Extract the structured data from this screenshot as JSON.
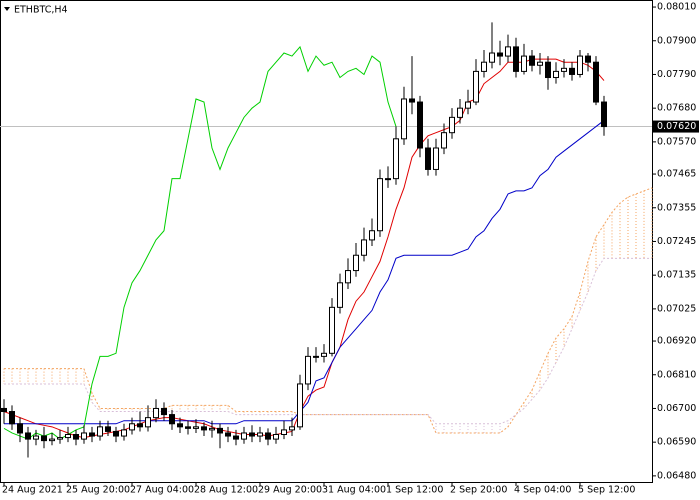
{
  "chart_data": {
    "type": "candlestick",
    "title": "ETHBTC,H4",
    "categories": [
      "24 Aug 2021",
      null,
      null,
      null,
      null,
      null,
      null,
      null,
      "25 Aug 20:00",
      null,
      null,
      null,
      null,
      null,
      null,
      null,
      "27 Aug 04:00",
      null,
      null,
      null,
      null,
      null,
      null,
      null,
      "28 Aug 12:00",
      null,
      null,
      null,
      null,
      null,
      null,
      null,
      "29 Aug 20:00",
      null,
      null,
      null,
      null,
      null,
      null,
      null,
      "31 Aug 04:00",
      null,
      null,
      null,
      null,
      null,
      null,
      null,
      "1 Sep 12:00",
      null,
      null,
      null,
      null,
      null,
      null,
      null,
      "2 Sep 20:00",
      null,
      null,
      null,
      null,
      null,
      null,
      null,
      "4 Sep 04:00",
      null,
      null,
      null,
      null,
      null,
      null,
      null,
      "5 Sep 12:00",
      null,
      null,
      null,
      null,
      null,
      null,
      null,
      null,
      null
    ],
    "open": [
      0.067,
      0.0669,
      0.0665,
      0.0662,
      0.066,
      0.0661,
      0.06595,
      0.066,
      0.06605,
      0.06615,
      0.066,
      0.0662,
      0.0661,
      0.0664,
      0.06625,
      0.0661,
      0.0663,
      0.0665,
      0.0664,
      0.0667,
      0.067,
      0.0668,
      0.0665,
      0.0664,
      0.06635,
      0.0664,
      0.0663,
      0.06635,
      0.0662,
      0.0661,
      0.066,
      0.0662,
      0.0661,
      0.0662,
      0.066,
      0.06615,
      0.0663,
      0.0664,
      0.0678,
      0.0687,
      0.0687,
      0.0688,
      0.0703,
      0.0711,
      0.0715,
      0.072,
      0.0725,
      0.0728,
      0.0745,
      0.0745,
      0.0758,
      0.0771,
      0.077,
      0.0755,
      0.0748,
      0.0755,
      0.076,
      0.0765,
      0.0768,
      0.077,
      0.078,
      0.0783,
      0.0786,
      0.0785,
      0.0788,
      0.078,
      0.0785,
      0.0782,
      0.0783,
      0.0778,
      0.078,
      0.0781,
      0.0779,
      0.0785,
      0.0783,
      0.077,
      null,
      null,
      null,
      null,
      null,
      null
    ],
    "high": [
      0.0673,
      0.0671,
      0.0667,
      0.0664,
      0.0663,
      0.0664,
      0.0662,
      0.0663,
      0.0664,
      0.0663,
      0.06645,
      0.0664,
      0.0666,
      0.0666,
      0.0664,
      0.0665,
      0.0667,
      0.0669,
      0.0671,
      0.0673,
      0.0672,
      0.06695,
      0.0667,
      0.0666,
      0.06665,
      0.06655,
      0.0666,
      0.0665,
      0.0664,
      0.0663,
      0.0664,
      0.06645,
      0.0664,
      0.06635,
      0.0664,
      0.0666,
      0.0667,
      0.0681,
      0.069,
      0.069,
      0.0691,
      0.0706,
      0.0714,
      0.0719,
      0.0724,
      0.0729,
      0.0732,
      0.0748,
      0.0749,
      0.0762,
      0.0775,
      0.0785,
      0.0772,
      0.0758,
      0.0758,
      0.0763,
      0.0768,
      0.0771,
      0.0774,
      0.0784,
      0.0787,
      0.0796,
      0.079,
      0.0792,
      0.0791,
      0.0789,
      0.0787,
      0.0786,
      0.0785,
      0.0783,
      0.0784,
      0.0783,
      0.0787,
      0.0786,
      0.0785,
      0.0772,
      null,
      null,
      null,
      null,
      null,
      null
    ],
    "low": [
      0.0665,
      0.0663,
      0.0659,
      0.0654,
      0.0658,
      0.0657,
      0.0658,
      0.06585,
      0.0659,
      0.0658,
      0.06585,
      0.0659,
      0.06595,
      0.0661,
      0.0659,
      0.06595,
      0.06615,
      0.06625,
      0.06625,
      0.06655,
      0.0666,
      0.0663,
      0.0662,
      0.06615,
      0.0662,
      0.0661,
      0.06605,
      0.0657,
      0.0659,
      0.0658,
      0.06585,
      0.0659,
      0.0659,
      0.0658,
      0.06585,
      0.066,
      0.0661,
      0.0663,
      0.0676,
      0.0685,
      0.0685,
      0.0687,
      0.0701,
      0.0709,
      0.0713,
      0.0718,
      0.0723,
      0.0726,
      0.0742,
      0.0743,
      0.0756,
      0.0766,
      0.0752,
      0.0746,
      0.0746,
      0.0753,
      0.0758,
      0.0763,
      0.0766,
      0.0769,
      0.0778,
      0.0781,
      0.0782,
      0.0783,
      0.0778,
      0.0779,
      0.078,
      0.0779,
      0.0774,
      0.0776,
      0.0778,
      0.0777,
      0.0778,
      0.078,
      0.0769,
      0.0759,
      null,
      null,
      null,
      null,
      null,
      null
    ],
    "close": [
      0.0669,
      0.0665,
      0.0662,
      0.066,
      0.0661,
      0.06595,
      0.066,
      0.06605,
      0.06615,
      0.066,
      0.0662,
      0.0661,
      0.0664,
      0.06625,
      0.0661,
      0.0663,
      0.0665,
      0.0664,
      0.0667,
      0.067,
      0.0668,
      0.0665,
      0.0664,
      0.06635,
      0.0664,
      0.0663,
      0.06635,
      0.0662,
      0.0661,
      0.066,
      0.0662,
      0.0661,
      0.0662,
      0.066,
      0.06615,
      0.0663,
      0.0664,
      0.0678,
      0.0687,
      0.0687,
      0.0688,
      0.0703,
      0.0711,
      0.0715,
      0.072,
      0.0725,
      0.0728,
      0.0745,
      0.0745,
      0.0758,
      0.0771,
      0.077,
      0.0755,
      0.0748,
      0.0755,
      0.076,
      0.0765,
      0.0768,
      0.077,
      0.078,
      0.0783,
      0.0786,
      0.0785,
      0.0788,
      0.078,
      0.0785,
      0.0782,
      0.0783,
      0.0778,
      0.078,
      0.0781,
      0.0779,
      0.0785,
      0.0783,
      0.077,
      0.0762,
      null,
      null,
      null,
      null,
      null,
      null
    ],
    "overlays": [
      {
        "color": "#e00000",
        "values": [
          0.0669,
          0.0668,
          0.0667,
          0.0666,
          0.0665,
          0.06645,
          0.0664,
          0.0663,
          0.0662,
          0.0661,
          0.06605,
          0.0661,
          0.06615,
          0.0662,
          0.06625,
          0.0663,
          0.0664,
          0.0665,
          0.0666,
          0.06665,
          0.0667,
          0.0667,
          0.06665,
          0.0666,
          0.06655,
          0.0665,
          0.0664,
          0.0663,
          0.06625,
          0.0662,
          0.06615,
          0.06615,
          0.06615,
          0.0661,
          0.06615,
          0.0662,
          0.06625,
          0.0669,
          0.0674,
          0.0676,
          0.0677,
          0.0685,
          0.069,
          0.0699,
          0.0705,
          0.0708,
          0.0713,
          0.0718,
          0.0726,
          0.0735,
          0.0742,
          0.0752,
          0.0756,
          0.0759,
          0.076,
          0.0761,
          0.0762,
          0.0764,
          0.077,
          0.0771,
          0.0776,
          0.0778,
          0.078,
          0.0783,
          0.0783,
          0.0783,
          0.0784,
          0.0784,
          0.0784,
          0.0784,
          0.0783,
          0.0783,
          0.0783,
          0.0782,
          0.078,
          0.0777,
          null,
          null,
          null,
          null,
          null,
          null
        ]
      },
      {
        "color": "#0000c8",
        "values": [
          0.0665,
          0.0665,
          0.0665,
          0.0665,
          0.0665,
          0.0665,
          0.0665,
          0.0665,
          0.0665,
          0.0665,
          0.0665,
          0.0665,
          0.0665,
          0.0665,
          0.0665,
          0.0666,
          0.0666,
          0.0666,
          0.0666,
          0.0666,
          0.0666,
          0.0666,
          0.0666,
          0.0666,
          0.0666,
          0.0666,
          0.0665,
          0.0665,
          0.0665,
          0.0665,
          0.0666,
          0.0666,
          0.0666,
          0.0666,
          0.0666,
          0.0666,
          0.0666,
          0.0669,
          0.0672,
          0.0679,
          0.068,
          0.0685,
          0.069,
          0.0693,
          0.0696,
          0.0699,
          0.0702,
          0.0708,
          0.0712,
          0.0719,
          0.072,
          0.072,
          0.072,
          0.072,
          0.072,
          0.072,
          0.072,
          0.0721,
          0.0722,
          0.0726,
          0.0728,
          0.0732,
          0.0735,
          0.074,
          0.0741,
          0.0741,
          0.0742,
          0.0746,
          0.0748,
          0.0752,
          0.0754,
          0.0756,
          0.0758,
          0.076,
          0.0762,
          0.0764,
          null,
          null,
          null,
          null,
          null,
          null
        ]
      },
      {
        "color": "#00d000",
        "values": [
          0.06635,
          0.0662,
          0.0661,
          0.066,
          0.0662,
          0.0661,
          0.0662,
          0.066,
          0.06615,
          0.0663,
          0.0664,
          0.0678,
          0.0687,
          0.0687,
          0.0688,
          0.0703,
          0.0711,
          0.0715,
          0.072,
          0.0725,
          0.0728,
          0.0745,
          0.0745,
          0.0758,
          0.0771,
          0.077,
          0.0755,
          0.0748,
          0.0755,
          0.076,
          0.0765,
          0.0768,
          0.077,
          0.078,
          0.0783,
          0.0786,
          0.0785,
          0.0788,
          0.078,
          0.0785,
          0.0782,
          0.0783,
          0.0778,
          0.078,
          0.0781,
          0.0779,
          0.0785,
          0.0783,
          0.077,
          0.0762,
          null,
          null,
          null,
          null,
          null,
          null,
          null,
          null,
          null,
          null,
          null,
          null,
          null,
          null,
          null,
          null,
          null,
          null,
          null,
          null,
          null,
          null,
          null,
          null,
          null,
          null,
          null,
          null,
          null,
          null,
          null,
          null
        ]
      }
    ],
    "cloud": [
      {
        "color": "#f4a460",
        "values": [
          0.0683,
          0.0683,
          0.0683,
          0.0683,
          0.0683,
          0.0683,
          0.0683,
          0.0683,
          0.0683,
          0.0683,
          0.0683,
          0.0675,
          0.067,
          0.067,
          0.067,
          0.067,
          0.067,
          0.067,
          0.067,
          0.067,
          0.067,
          0.0671,
          0.0671,
          0.0671,
          0.0671,
          0.0671,
          0.0671,
          0.0671,
          0.0671,
          0.0669,
          0.0669,
          0.0669,
          0.0669,
          0.0669,
          0.0669,
          0.0669,
          0.0669,
          0.0668,
          0.0668,
          0.0668,
          0.0668,
          0.0668,
          0.0668,
          0.0668,
          0.0668,
          0.0668,
          0.0668,
          0.0668,
          0.0668,
          0.0668,
          0.0668,
          0.0668,
          0.0668,
          0.0668,
          0.0662,
          0.0662,
          0.0662,
          0.0662,
          0.0662,
          0.0662,
          0.0662,
          0.0662,
          0.0662,
          0.0664,
          0.0668,
          0.0672,
          0.0676,
          0.0682,
          0.0688,
          0.0693,
          0.0696,
          0.07,
          0.0708,
          0.0718,
          0.0726,
          0.073,
          0.0734,
          0.0737,
          0.0739,
          0.074,
          0.0741,
          0.0742
        ]
      },
      {
        "color": "#d8bfd8",
        "values": [
          0.0678,
          0.0678,
          0.0678,
          0.0678,
          0.0678,
          0.0678,
          0.0678,
          0.0678,
          0.0678,
          0.0678,
          0.0678,
          0.0672,
          0.0669,
          0.0669,
          0.0669,
          0.0669,
          0.0669,
          0.0669,
          0.0669,
          0.0669,
          0.0669,
          0.0669,
          0.0669,
          0.0669,
          0.0669,
          0.0669,
          0.0669,
          0.0669,
          0.0669,
          0.0668,
          0.0668,
          0.0668,
          0.0668,
          0.0668,
          0.0668,
          0.0668,
          0.0668,
          0.0668,
          0.0668,
          0.0668,
          0.0668,
          0.0668,
          0.0668,
          0.0668,
          0.0668,
          0.0668,
          0.0668,
          0.0668,
          0.0668,
          0.0668,
          0.0668,
          0.0668,
          0.0668,
          0.0668,
          0.0665,
          0.0665,
          0.0665,
          0.0665,
          0.0665,
          0.0665,
          0.0665,
          0.0665,
          0.0665,
          0.0666,
          0.0668,
          0.067,
          0.0673,
          0.0676,
          0.068,
          0.0685,
          0.069,
          0.0696,
          0.0702,
          0.0708,
          0.0715,
          0.0719,
          0.0719,
          0.0719,
          0.0719,
          0.0719,
          0.0719,
          0.0719
        ]
      }
    ],
    "current_price": {
      "value": 0.0762,
      "label": "0.07620"
    },
    "ylim": [
      0.0646,
      0.08033
    ],
    "yticks": [
      {
        "value": 0.0801,
        "label": "0.08010"
      },
      {
        "value": 0.079,
        "label": "0.07900"
      },
      {
        "value": 0.0779,
        "label": "0.07790"
      },
      {
        "value": 0.0768,
        "label": "0.07680"
      },
      {
        "value": 0.0757,
        "label": "0.07570"
      },
      {
        "value": 0.07465,
        "label": "0.07465"
      },
      {
        "value": 0.07355,
        "label": "0.07355"
      },
      {
        "value": 0.07245,
        "label": "0.07245"
      },
      {
        "value": 0.07135,
        "label": "0.07135"
      },
      {
        "value": 0.07025,
        "label": "0.07025"
      },
      {
        "value": 0.0692,
        "label": "0.06920"
      },
      {
        "value": 0.0681,
        "label": "0.06810"
      },
      {
        "value": 0.067,
        "label": "0.06700"
      },
      {
        "value": 0.0659,
        "label": "0.06590"
      },
      {
        "value": 0.0648,
        "label": "0.06480"
      }
    ]
  }
}
